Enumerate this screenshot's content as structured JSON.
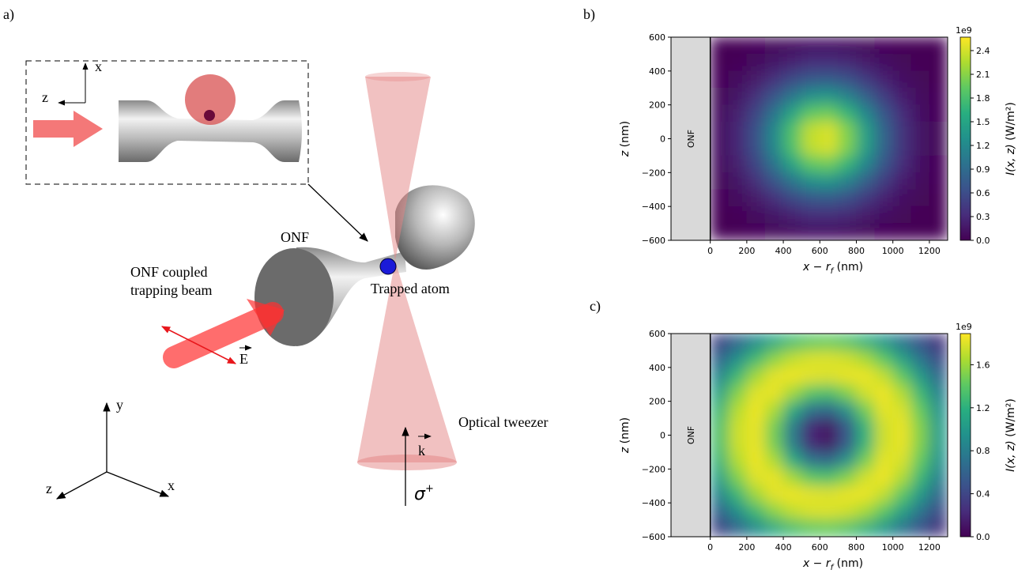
{
  "panels": [
    "a)",
    "b)",
    "c)"
  ],
  "diagram": {
    "inset_x": "x",
    "inset_z": "z",
    "onf": "ONF",
    "beam_label": [
      "ONF coupled",
      "trapping beam"
    ],
    "atom": "Trapped atom",
    "tweezer": "Optical tweezer",
    "field": "E",
    "wavevector": "k",
    "polarization": [
      "σ",
      "+"
    ],
    "axes": {
      "x": "x",
      "y": "y",
      "z": "z"
    }
  },
  "chart_data": [
    {
      "type": "heatmap",
      "x": [
        50,
        150,
        250,
        350,
        450,
        550,
        650,
        750,
        850,
        950,
        1050,
        1150,
        1250
      ],
      "y": [
        550,
        450,
        350,
        250,
        150,
        50,
        -50,
        -150,
        -250,
        -350,
        -450,
        -550
      ],
      "values": [
        [
          0.01,
          0.01,
          0.03,
          0.06,
          0.09,
          0.12,
          0.12,
          0.11,
          0.07,
          0.04,
          0.02,
          0.01,
          0.0
        ],
        [
          0.01,
          0.04,
          0.09,
          0.16,
          0.25,
          0.32,
          0.33,
          0.29,
          0.2,
          0.12,
          0.05,
          0.02,
          0.01
        ],
        [
          0.03,
          0.08,
          0.19,
          0.36,
          0.56,
          0.71,
          0.74,
          0.63,
          0.44,
          0.25,
          0.12,
          0.05,
          0.01
        ],
        [
          0.05,
          0.15,
          0.35,
          0.66,
          1.01,
          1.28,
          1.34,
          1.14,
          0.8,
          0.46,
          0.22,
          0.08,
          0.03
        ],
        [
          0.08,
          0.23,
          0.52,
          0.97,
          1.5,
          1.91,
          1.98,
          1.69,
          1.19,
          0.68,
          0.32,
          0.12,
          0.04
        ],
        [
          0.1,
          0.28,
          0.63,
          1.19,
          1.83,
          2.32,
          2.42,
          2.06,
          1.45,
          0.83,
          0.39,
          0.15,
          0.05
        ],
        [
          0.1,
          0.28,
          0.63,
          1.19,
          1.83,
          2.32,
          2.42,
          2.06,
          1.45,
          0.83,
          0.39,
          0.15,
          0.05
        ],
        [
          0.08,
          0.23,
          0.52,
          0.97,
          1.5,
          1.91,
          1.98,
          1.69,
          1.19,
          0.68,
          0.32,
          0.12,
          0.04
        ],
        [
          0.05,
          0.15,
          0.35,
          0.66,
          1.01,
          1.28,
          1.34,
          1.14,
          0.8,
          0.46,
          0.22,
          0.08,
          0.03
        ],
        [
          0.03,
          0.08,
          0.19,
          0.36,
          0.56,
          0.71,
          0.74,
          0.63,
          0.44,
          0.25,
          0.12,
          0.05,
          0.01
        ],
        [
          0.01,
          0.04,
          0.09,
          0.16,
          0.25,
          0.32,
          0.33,
          0.29,
          0.2,
          0.12,
          0.05,
          0.02,
          0.01
        ],
        [
          0.01,
          0.01,
          0.03,
          0.06,
          0.09,
          0.12,
          0.12,
          0.11,
          0.07,
          0.04,
          0.02,
          0.01,
          0.0
        ]
      ],
      "xlim": [
        -215,
        1300
      ],
      "ylim": [
        -600,
        600
      ],
      "xticks": [
        0,
        200,
        400,
        600,
        800,
        1000,
        1200
      ],
      "yticks": [
        {
          "value": -600,
          "label": "−600"
        },
        {
          "value": -400,
          "label": "−400"
        },
        {
          "value": -200,
          "label": "−200"
        },
        0,
        200,
        400,
        600
      ],
      "xlabel": [
        "x",
        " − ",
        "r",
        "f",
        " (nm)"
      ],
      "ylabel": [
        "z",
        " (nm)"
      ],
      "region_label": "ONF",
      "colormap": "viridis",
      "clim": [
        0,
        2.57
      ],
      "cticks": [
        {
          "value": 0,
          "label": "0.0"
        },
        0.3,
        0.6,
        0.9,
        1.2,
        1.5,
        1.8,
        2.1,
        2.4
      ],
      "colorbar_label": [
        "I(x, z)",
        " (W/m²)"
      ],
      "colorbar_offset": "1e9"
    },
    {
      "type": "heatmap",
      "x": [
        50,
        150,
        250,
        350,
        450,
        550,
        650,
        750,
        850,
        950,
        1050,
        1150,
        1250
      ],
      "y": [
        550,
        450,
        350,
        250,
        150,
        50,
        -50,
        -150,
        -250,
        -350,
        -450,
        -550
      ],
      "values": [
        [
          0.39,
          0.62,
          0.89,
          1.13,
          1.31,
          1.41,
          1.43,
          1.36,
          1.21,
          0.99,
          0.73,
          0.48,
          0.28
        ],
        [
          0.61,
          0.94,
          1.28,
          1.55,
          1.71,
          1.78,
          1.79,
          1.75,
          1.63,
          1.4,
          1.08,
          0.74,
          0.44
        ],
        [
          0.86,
          1.26,
          1.61,
          1.81,
          1.85,
          1.81,
          1.79,
          1.83,
          1.84,
          1.71,
          1.41,
          1.02,
          0.64
        ],
        [
          1.08,
          1.52,
          1.8,
          1.83,
          1.62,
          1.39,
          1.34,
          1.52,
          1.76,
          1.85,
          1.66,
          1.26,
          0.82
        ],
        [
          1.25,
          1.67,
          1.85,
          1.65,
          1.17,
          0.73,
          0.64,
          0.97,
          1.48,
          1.82,
          1.78,
          1.43,
          0.96
        ],
        [
          1.33,
          1.74,
          1.83,
          1.48,
          0.81,
          0.22,
          0.1,
          0.54,
          1.23,
          1.75,
          1.83,
          1.52,
          1.03
        ],
        [
          1.33,
          1.74,
          1.83,
          1.48,
          0.81,
          0.22,
          0.1,
          0.54,
          1.23,
          1.75,
          1.83,
          1.52,
          1.03
        ],
        [
          1.25,
          1.67,
          1.85,
          1.65,
          1.17,
          0.73,
          0.64,
          0.97,
          1.48,
          1.82,
          1.78,
          1.43,
          0.96
        ],
        [
          1.08,
          1.52,
          1.8,
          1.83,
          1.62,
          1.39,
          1.34,
          1.52,
          1.76,
          1.85,
          1.66,
          1.26,
          0.82
        ],
        [
          0.86,
          1.26,
          1.61,
          1.81,
          1.85,
          1.81,
          1.79,
          1.83,
          1.84,
          1.71,
          1.41,
          1.02,
          0.64
        ],
        [
          0.61,
          0.94,
          1.28,
          1.55,
          1.71,
          1.78,
          1.79,
          1.75,
          1.63,
          1.4,
          1.08,
          0.74,
          0.44
        ],
        [
          0.39,
          0.62,
          0.89,
          1.13,
          1.31,
          1.41,
          1.43,
          1.36,
          1.21,
          0.99,
          0.73,
          0.48,
          0.28
        ]
      ],
      "xlim": [
        -215,
        1300
      ],
      "ylim": [
        -600,
        600
      ],
      "xticks": [
        0,
        200,
        400,
        600,
        800,
        1000,
        1200
      ],
      "yticks": [
        {
          "value": -600,
          "label": "−600"
        },
        {
          "value": -400,
          "label": "−400"
        },
        {
          "value": -200,
          "label": "−200"
        },
        0,
        200,
        400,
        600
      ],
      "xlabel": [
        "x",
        " − ",
        "r",
        "f",
        " (nm)"
      ],
      "ylabel": [
        "z",
        " (nm)"
      ],
      "region_label": "ONF",
      "colormap": "viridis",
      "clim": [
        0,
        1.89
      ],
      "cticks": [
        {
          "value": 0,
          "label": "0.0"
        },
        0.4,
        0.8,
        1.2,
        1.6
      ],
      "colorbar_label": [
        "I(x, z)",
        " (W/m²)"
      ],
      "colorbar_offset": "1e9"
    }
  ]
}
